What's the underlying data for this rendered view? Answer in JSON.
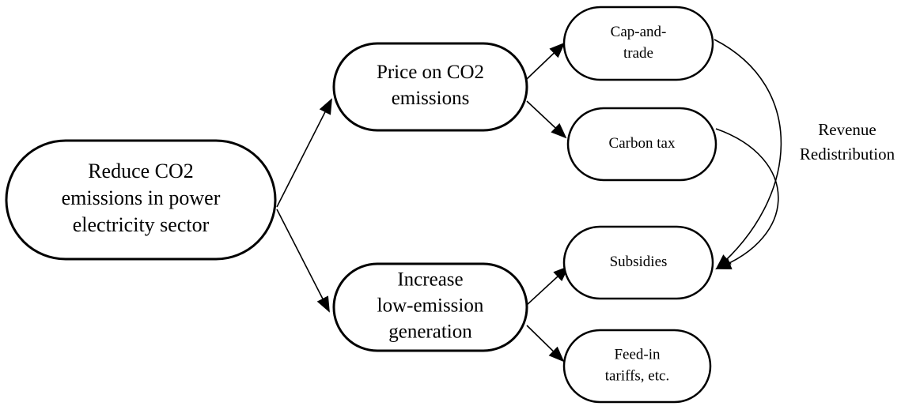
{
  "nodes": [
    {
      "lines": [
        "Reduce CO2",
        "emissions in power",
        "electricity sector"
      ]
    },
    {
      "lines": [
        "Price on CO2",
        "emissions"
      ]
    },
    {
      "lines": [
        "Increase",
        "low-emission",
        "generation"
      ]
    },
    {
      "lines": [
        "Cap-and-",
        "trade"
      ]
    },
    {
      "lines": [
        "Carbon tax"
      ]
    },
    {
      "lines": [
        "Subsidies"
      ]
    },
    {
      "lines": [
        "Feed-in",
        "tariffs, etc."
      ]
    }
  ],
  "annotation": {
    "lines": [
      "Revenue",
      "Redistribution"
    ]
  }
}
